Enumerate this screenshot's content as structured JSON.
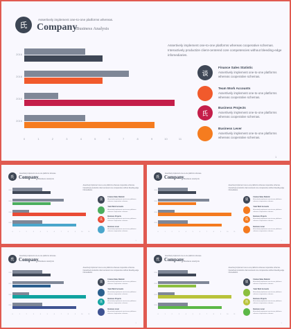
{
  "header": {
    "logo_glyph": "氏",
    "tagline": "Assertively implement one-to-one platforms whereas.",
    "company": "Company",
    "subtitle": "Business Analysis"
  },
  "intro_text": "Assertively implement one-to-one platforms whereas cooperative schemas. Interactively productize client-centered core competencies without bleeding-edge infomediaries.",
  "page_number": "1",
  "legend": [
    {
      "title": "Finance Sales Statistic",
      "desc": "Assertively implement one-to-one platforms whereas cooperative schemas.",
      "glyph": "谈",
      "icon": "finance-icon"
    },
    {
      "title": "Team Work Accounts",
      "desc": "Assertively implement one-to-one platforms whereas cooperative schemas.",
      "glyph": "",
      "icon": ""
    },
    {
      "title": "Business Projects",
      "desc": "Assertively implement one-to-one platforms whereas cooperative schemas.",
      "glyph": "氏",
      "icon": "projects-icon"
    },
    {
      "title": "Business Lever",
      "desc": "Assertively implement one-to-one platforms whereas cooperative schemas.",
      "glyph": "",
      "icon": ""
    }
  ],
  "chart_data": {
    "type": "bar",
    "categories": [
      "2016",
      "2016",
      "2016",
      "2016"
    ],
    "xticks": [
      "0",
      "1",
      "2",
      "3",
      "4",
      "5",
      "6",
      "7",
      "8",
      "9",
      "10",
      "11"
    ],
    "xlim": [
      0,
      11
    ],
    "series": [
      {
        "values": [
          4.3,
          7.4,
          2.4,
          4.3
        ]
      },
      {
        "values": [
          5.5,
          5.5,
          10.6,
          9.2
        ]
      }
    ]
  },
  "palettes": {
    "main": {
      "series1": "#7f8797",
      "series2": [
        "#3f4756",
        "#f15a2c",
        "#c41e4a",
        "#f57c1f"
      ],
      "dots": [
        "#3f4756",
        "#f15a2c",
        "#c41e4a",
        "#f57c1f"
      ]
    },
    "blue_green": {
      "series1": "#7f8797",
      "series2": [
        "#3f4756",
        "#4cae5e",
        "#ea4b35",
        "#4aa6cc"
      ],
      "dots": [
        "#3f4756",
        "#4cae5e",
        "#ea4b35",
        "#4aa6cc"
      ]
    },
    "orange": {
      "series1": "#7f8797",
      "series2": [
        "#3f4756",
        "#f47a1f",
        "#f47a1f",
        "#f47a1f"
      ],
      "dots": [
        "#3f4756",
        "#f47a1f",
        "#f47a1f",
        "#f47a1f"
      ]
    },
    "navy_teal": {
      "series1": "#7f8797",
      "series2": [
        "#3f4756",
        "#2b5f8e",
        "#11a3a0",
        "#3f5392"
      ],
      "dots": [
        "#3f4756",
        "#2b5f8e",
        "#11a3a0",
        "#3f5392"
      ]
    },
    "lime": {
      "series1": "#7f8797",
      "series2": [
        "#3f4756",
        "#8cbf3f",
        "#b9c33a",
        "#5cb847"
      ],
      "dots": [
        "#3f4756",
        "#8cbf3f",
        "#b9c33a",
        "#5cb847"
      ]
    }
  }
}
